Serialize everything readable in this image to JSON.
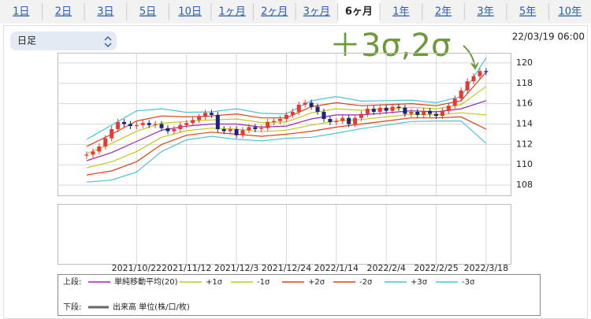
{
  "tabs": [
    {
      "label": "1日",
      "selected": false
    },
    {
      "label": "2日",
      "selected": false
    },
    {
      "label": "3日",
      "selected": false
    },
    {
      "label": "5日",
      "selected": false
    },
    {
      "label": "10日",
      "selected": false
    },
    {
      "label": "1ヶ月",
      "selected": false
    },
    {
      "label": "2ヶ月",
      "selected": false
    },
    {
      "label": "3ヶ月",
      "selected": false
    },
    {
      "label": "6ヶ月",
      "selected": true
    },
    {
      "label": "1年",
      "selected": false
    },
    {
      "label": "2年",
      "selected": false
    },
    {
      "label": "3年",
      "selected": false
    },
    {
      "label": "5年",
      "selected": false
    },
    {
      "label": "10年",
      "selected": false
    }
  ],
  "dropdown": "日足",
  "timestamp": "22/03/19 06:00",
  "annotation": "＋3σ,2σ",
  "chart_data": {
    "type": "candlestick",
    "ylim": [
      107,
      121
    ],
    "yticks": [
      108,
      110,
      112,
      114,
      116,
      118,
      120
    ],
    "grid": true,
    "up_color": "#e53935",
    "down_color": "#1a237e",
    "categories": [
      null,
      null,
      null,
      null,
      null,
      null,
      null,
      null,
      "2021/10/22",
      null,
      null,
      null,
      null,
      null,
      null,
      null,
      "2021/11/12",
      null,
      null,
      null,
      null,
      null,
      null,
      null,
      "2021/12/3",
      null,
      null,
      null,
      null,
      null,
      null,
      null,
      "2021/12/24",
      null,
      null,
      null,
      null,
      null,
      null,
      null,
      "2022/1/14",
      null,
      null,
      null,
      null,
      null,
      null,
      null,
      "2022/2/4",
      null,
      null,
      null,
      null,
      null,
      null,
      null,
      "2022/2/25",
      null,
      null,
      null,
      null,
      null,
      null,
      null,
      "2022/3/18"
    ],
    "open": [
      110.9,
      111.0,
      111.3,
      111.8,
      112.6,
      113.5,
      114.2,
      114.0,
      113.8,
      113.9,
      114.1,
      113.9,
      114.0,
      113.6,
      113.3,
      113.5,
      113.9,
      114.1,
      114.4,
      114.7,
      115.1,
      114.9,
      113.5,
      113.3,
      113.5,
      112.9,
      113.4,
      113.7,
      113.5,
      113.6,
      114.2,
      114.3,
      114.5,
      114.9,
      115.2,
      115.9,
      116.1,
      115.7,
      115.2,
      114.5,
      114.2,
      114.3,
      114.6,
      114.0,
      114.6,
      115.0,
      115.5,
      115.2,
      115.6,
      115.3,
      115.7,
      115.6,
      115.0,
      115.2,
      114.9,
      115.3,
      115.0,
      114.8,
      115.3,
      115.8,
      116.5,
      117.3,
      118.2,
      118.7,
      119.2
    ],
    "high": [
      111.3,
      111.6,
      112.1,
      112.9,
      113.8,
      114.5,
      114.5,
      114.3,
      114.2,
      114.4,
      114.4,
      114.3,
      114.3,
      113.9,
      113.8,
      114.2,
      114.4,
      114.7,
      115.0,
      115.4,
      115.4,
      115.2,
      113.8,
      113.8,
      113.8,
      113.7,
      114.0,
      114.0,
      113.9,
      114.5,
      114.6,
      114.8,
      115.2,
      115.5,
      116.2,
      116.4,
      116.4,
      116.0,
      115.5,
      114.8,
      114.6,
      114.9,
      114.9,
      114.9,
      115.3,
      115.8,
      115.8,
      115.9,
      115.9,
      116.0,
      116.0,
      115.9,
      115.5,
      115.5,
      115.6,
      115.6,
      115.3,
      115.6,
      116.1,
      116.8,
      117.6,
      118.5,
      119.0,
      119.5,
      119.5
    ],
    "low": [
      110.6,
      110.7,
      111.0,
      111.5,
      112.3,
      113.2,
      113.7,
      113.5,
      113.5,
      113.6,
      113.6,
      113.6,
      113.3,
      113.0,
      113.0,
      113.2,
      113.6,
      113.8,
      114.1,
      114.4,
      114.6,
      113.2,
      113.0,
      113.0,
      112.6,
      112.6,
      113.1,
      113.2,
      113.2,
      113.3,
      113.9,
      114.0,
      114.2,
      114.6,
      114.9,
      115.6,
      115.4,
      114.9,
      114.2,
      113.9,
      113.9,
      114.0,
      113.7,
      113.7,
      114.3,
      114.7,
      114.9,
      114.9,
      115.0,
      115.0,
      115.3,
      114.7,
      114.7,
      114.6,
      114.6,
      114.7,
      114.5,
      114.5,
      115.0,
      115.5,
      116.2,
      117.0,
      117.9,
      118.4,
      118.8
    ],
    "close": [
      111.0,
      111.3,
      111.8,
      112.6,
      113.5,
      114.2,
      114.0,
      113.8,
      113.9,
      114.1,
      113.9,
      114.0,
      113.6,
      113.3,
      113.5,
      113.9,
      114.1,
      114.4,
      114.7,
      115.1,
      114.9,
      113.5,
      113.3,
      113.5,
      112.9,
      113.4,
      113.7,
      113.5,
      113.6,
      114.2,
      114.3,
      114.5,
      114.9,
      115.2,
      115.9,
      116.1,
      115.7,
      115.2,
      114.5,
      114.2,
      114.3,
      114.6,
      114.0,
      114.6,
      115.0,
      115.5,
      115.2,
      115.6,
      115.3,
      115.7,
      115.6,
      115.0,
      115.2,
      114.9,
      115.3,
      115.0,
      114.8,
      115.3,
      115.8,
      116.5,
      117.3,
      118.2,
      118.7,
      119.2,
      119.1
    ],
    "bands": {
      "x": [
        0,
        4,
        8,
        12,
        16,
        20,
        24,
        28,
        32,
        36,
        40,
        44,
        48,
        52,
        56,
        60,
        64
      ],
      "series": [
        {
          "name": "単純移動平均(20)",
          "color": "#9c27b0",
          "values": [
            110.4,
            111.2,
            112.3,
            113.4,
            113.8,
            114.0,
            114.0,
            113.7,
            113.8,
            114.5,
            114.9,
            114.9,
            115.1,
            115.3,
            115.2,
            115.5,
            116.3
          ]
        },
        {
          "name": "+1σ",
          "color": "#c0c820",
          "values": [
            111.1,
            112.1,
            113.3,
            114.1,
            114.25,
            114.4,
            114.5,
            114.15,
            114.2,
            115.1,
            115.5,
            115.35,
            115.5,
            115.65,
            115.5,
            115.9,
            117.7
          ]
        },
        {
          "name": "-1σ",
          "color": "#c0c820",
          "values": [
            109.7,
            110.3,
            111.3,
            112.7,
            113.35,
            113.6,
            113.5,
            113.25,
            113.4,
            113.9,
            114.3,
            114.45,
            114.7,
            114.95,
            114.9,
            115.1,
            114.9
          ]
        },
        {
          "name": "+2σ",
          "color": "#d84315",
          "values": [
            111.8,
            113.0,
            114.3,
            114.8,
            114.7,
            114.8,
            115.0,
            114.6,
            114.6,
            115.7,
            116.1,
            115.8,
            115.9,
            116.0,
            115.8,
            116.3,
            119.1
          ]
        },
        {
          "name": "-2σ",
          "color": "#d84315",
          "values": [
            109.0,
            109.4,
            110.3,
            112.0,
            112.9,
            113.2,
            113.0,
            112.8,
            113.0,
            113.3,
            113.7,
            114.0,
            114.3,
            114.6,
            114.6,
            114.7,
            113.5
          ]
        },
        {
          "name": "+3σ",
          "color": "#4dc3d6",
          "values": [
            112.5,
            113.9,
            115.3,
            115.5,
            115.15,
            115.2,
            115.5,
            115.05,
            115.0,
            116.3,
            116.7,
            116.25,
            116.3,
            116.35,
            116.1,
            116.7,
            120.5
          ]
        },
        {
          "name": "-3σ",
          "color": "#4dc3d6",
          "values": [
            108.3,
            108.5,
            109.3,
            111.3,
            112.45,
            112.8,
            112.5,
            112.35,
            112.6,
            112.7,
            113.1,
            113.55,
            113.9,
            114.25,
            114.3,
            114.3,
            112.1
          ]
        }
      ]
    },
    "legend": {
      "upper": "上段:",
      "lower": "下段:"
    },
    "volume_series": {
      "name": "出来高 単位(株/口/枚)",
      "color": "#666666"
    }
  }
}
